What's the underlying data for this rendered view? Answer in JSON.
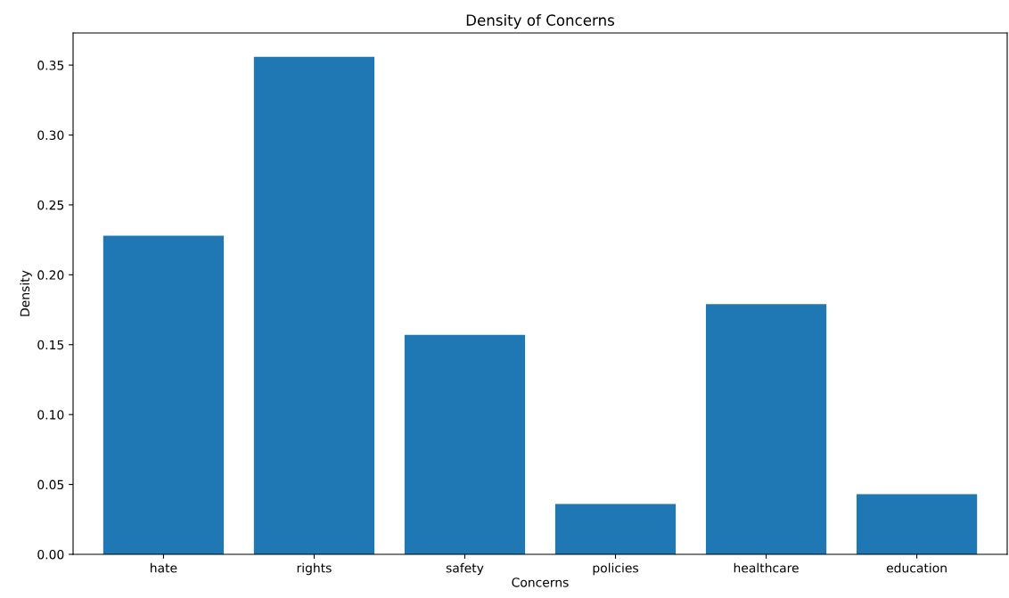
{
  "chart_data": {
    "type": "bar",
    "title": "Density of Concerns",
    "xlabel": "Concerns",
    "ylabel": "Density",
    "categories": [
      "hate",
      "rights",
      "safety",
      "policies",
      "healthcare",
      "education"
    ],
    "values": [
      0.228,
      0.356,
      0.157,
      0.036,
      0.179,
      0.043
    ],
    "color": "#1f77b4",
    "ylim": [
      0,
      0.373
    ],
    "yticks": [
      {
        "value": 0,
        "label": "0.00"
      },
      {
        "value": 0.05,
        "label": "0.05"
      },
      {
        "value": 0.1,
        "label": "0.10"
      },
      {
        "value": 0.15,
        "label": "0.15"
      },
      {
        "value": 0.2,
        "label": "0.20"
      },
      {
        "value": 0.25,
        "label": "0.25"
      },
      {
        "value": 0.3,
        "label": "0.30"
      },
      {
        "value": 0.35,
        "label": "0.35"
      }
    ],
    "grid": false
  }
}
